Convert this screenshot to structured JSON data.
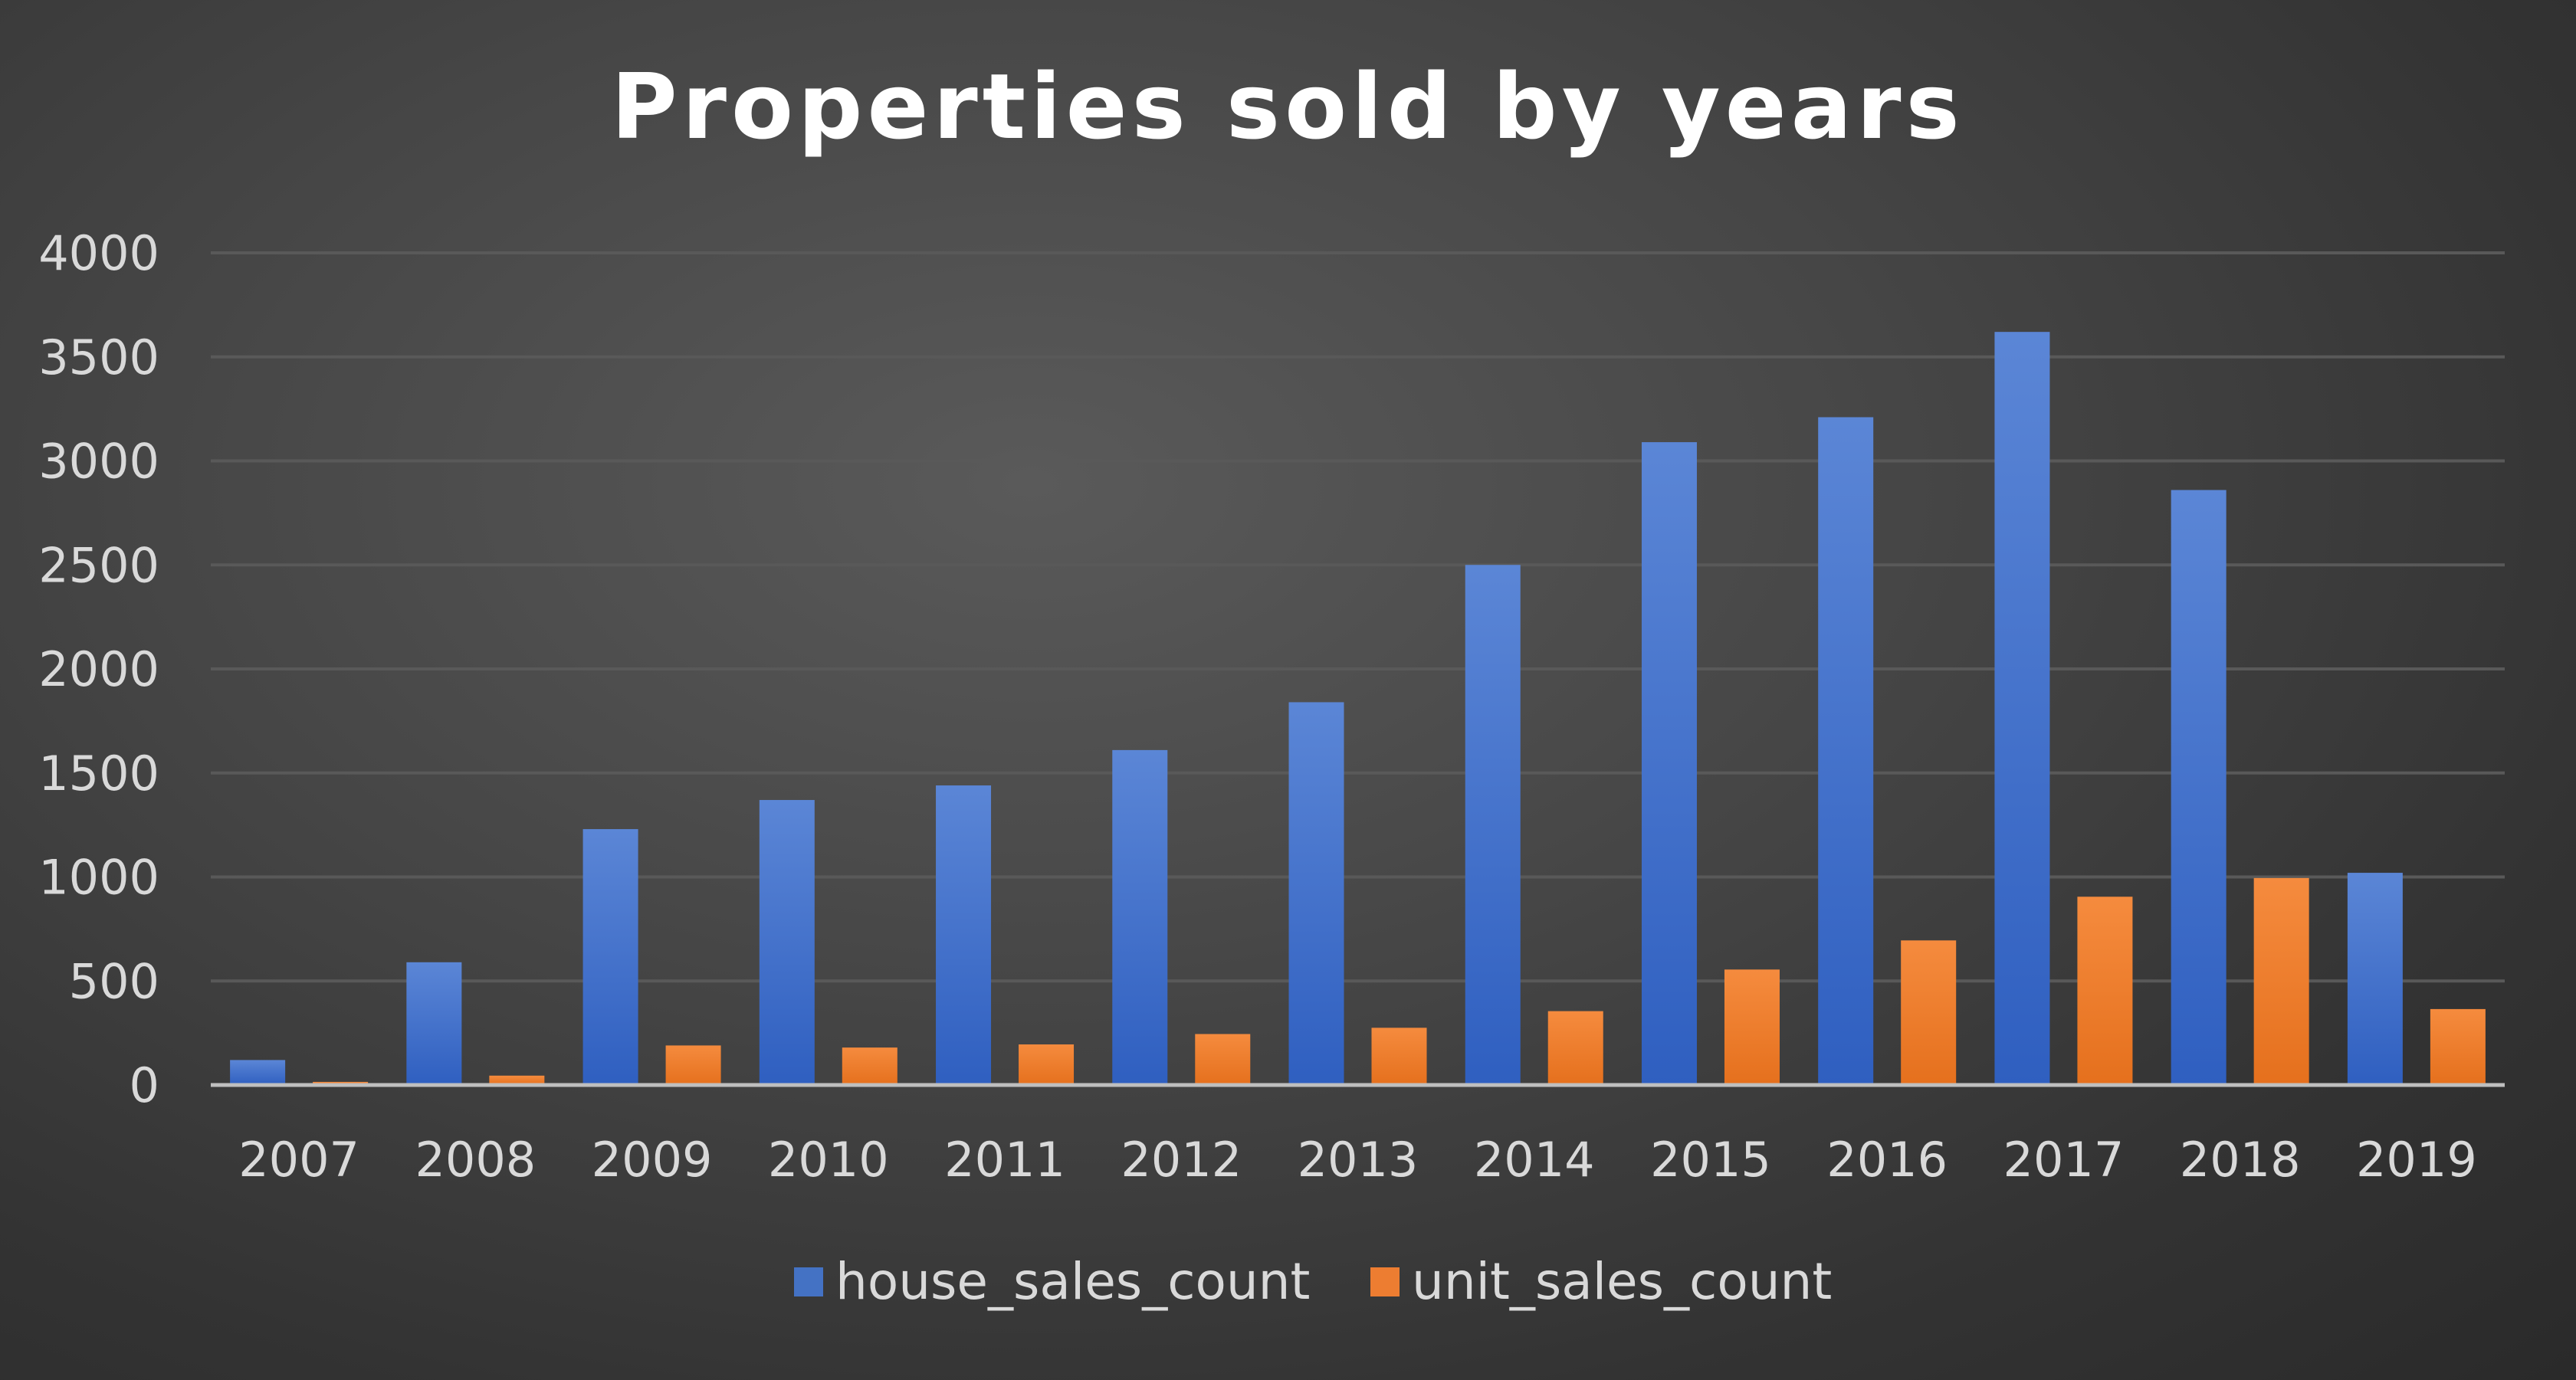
{
  "chart_data": {
    "type": "bar",
    "title": "Properties sold by years",
    "xlabel": "",
    "ylabel": "",
    "categories": [
      "2007",
      "2008",
      "2009",
      "2010",
      "2011",
      "2012",
      "2013",
      "2014",
      "2015",
      "2016",
      "2017",
      "2018",
      "2019"
    ],
    "series": [
      {
        "name": "house_sales_count",
        "values": [
          120,
          590,
          1230,
          1370,
          1440,
          1610,
          1840,
          2500,
          3090,
          3210,
          3620,
          2860,
          1020
        ]
      },
      {
        "name": "unit_sales_count",
        "values": [
          15,
          45,
          190,
          180,
          195,
          245,
          275,
          355,
          555,
          695,
          905,
          995,
          365
        ]
      }
    ],
    "ylim": [
      0,
      4000
    ],
    "yticks": [
      0,
      500,
      1000,
      1500,
      2000,
      2500,
      3000,
      3500,
      4000
    ],
    "grid": true,
    "legend_position": "bottom",
    "colors": {
      "house_sales_count": "#4472c4",
      "unit_sales_count": "#ed7d31",
      "background": "#404040",
      "gridline": "#595959",
      "text": "#d9d9d9",
      "title": "#ffffff"
    }
  }
}
